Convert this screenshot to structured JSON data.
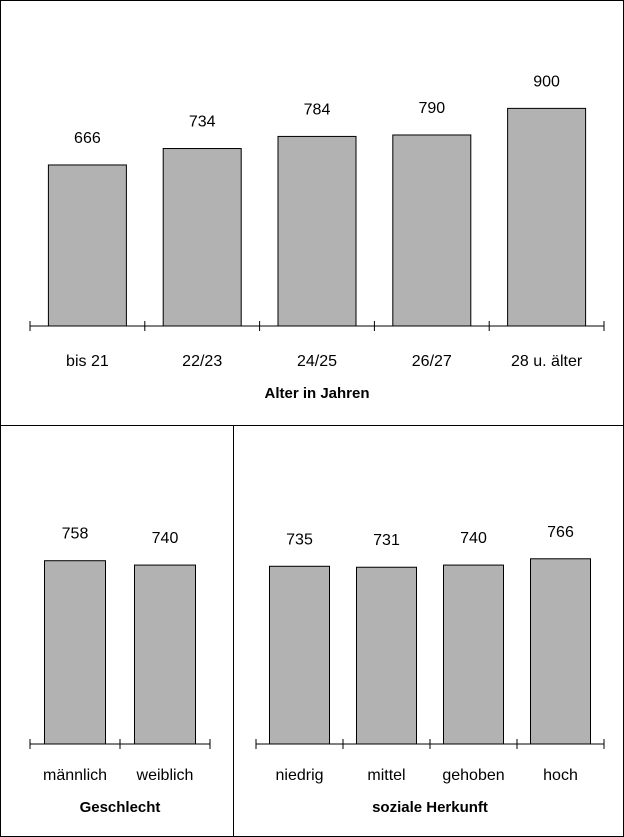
{
  "chart_data": [
    {
      "type": "bar",
      "xlabel": "Alter in Jahren",
      "categories": [
        "bis 21",
        "22/23",
        "24/25",
        "26/27",
        "28 u. älter"
      ],
      "values": [
        666,
        734,
        784,
        790,
        900
      ],
      "ylim": [
        0,
        960
      ],
      "data_labels": [
        "666",
        "734",
        "784",
        "790",
        "900"
      ],
      "colors": {
        "bar": "#b2b2b2"
      }
    },
    {
      "type": "bar",
      "xlabel": "Geschlecht",
      "categories": [
        "männlich",
        "weiblich"
      ],
      "values": [
        758,
        740
      ],
      "ylim": [
        0,
        960
      ],
      "data_labels": [
        "758",
        "740"
      ],
      "colors": {
        "bar": "#b2b2b2"
      }
    },
    {
      "type": "bar",
      "xlabel": "soziale Herkunft",
      "categories": [
        "niedrig",
        "mittel",
        "gehoben",
        "hoch"
      ],
      "values": [
        735,
        731,
        740,
        766
      ],
      "ylim": [
        0,
        960
      ],
      "data_labels": [
        "735",
        "731",
        "740",
        "766"
      ],
      "colors": {
        "bar": "#b2b2b2"
      }
    }
  ]
}
